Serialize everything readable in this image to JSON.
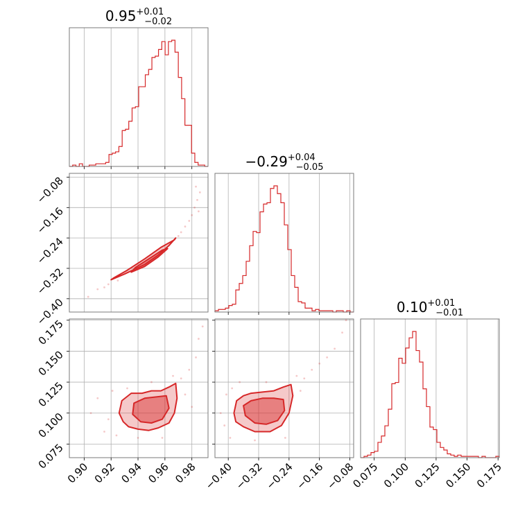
{
  "chart_data": {
    "type": "corner",
    "color": "#d62728",
    "parameters": [
      {
        "index": 0,
        "title": {
          "median": "0.95",
          "plus": "+0.01",
          "minus": "−0.02"
        },
        "range": [
          0.889,
          0.992
        ],
        "ticks": [
          0.9,
          0.92,
          0.94,
          0.96,
          0.98
        ],
        "tick_labels": [
          "0.90",
          "0.92",
          "0.94",
          "0.96",
          "0.98"
        ],
        "histogram": [
          0,
          1,
          0,
          2,
          0,
          0,
          1,
          1,
          2,
          2,
          2,
          3,
          9,
          10,
          11,
          15,
          27,
          28,
          34,
          44,
          45,
          60,
          60,
          69,
          73,
          82,
          83,
          88,
          94,
          84,
          94,
          95,
          86,
          67,
          51,
          31,
          31,
          10,
          3,
          1,
          1,
          0
        ]
      },
      {
        "index": 1,
        "title": {
          "median": "−0.29",
          "plus": "+0.04",
          "minus": "−0.05"
        },
        "range": [
          -0.435,
          -0.07
        ],
        "ticks": [
          -0.4,
          -0.32,
          -0.24,
          -0.16,
          -0.08
        ],
        "tick_labels": [
          "−0.40",
          "−0.32",
          "−0.24",
          "−0.16",
          "−0.08"
        ],
        "histogram": [
          1,
          2,
          2,
          3,
          5,
          6,
          17,
          22,
          28,
          39,
          51,
          62,
          61,
          77,
          83,
          84,
          95,
          97,
          91,
          84,
          67,
          48,
          28,
          19,
          8,
          7,
          3,
          3,
          1,
          2,
          1,
          1,
          1,
          1,
          0,
          1,
          1,
          0,
          1,
          0
        ]
      },
      {
        "index": 2,
        "title": {
          "median": "0.10",
          "plus": "+0.01",
          "minus": "−0.01"
        },
        "range": [
          0.064,
          0.176
        ],
        "ticks": [
          0.075,
          0.1,
          0.125,
          0.15,
          0.175
        ],
        "tick_labels": [
          "0.075",
          "0.100",
          "0.125",
          "0.150",
          "0.175"
        ],
        "histogram": [
          0,
          1,
          2,
          4,
          5,
          12,
          17,
          25,
          38,
          58,
          59,
          78,
          74,
          86,
          94,
          99,
          84,
          75,
          54,
          40,
          24,
          22,
          12,
          8,
          6,
          3,
          2,
          1,
          2,
          1,
          1,
          1,
          1,
          1,
          0,
          1,
          0,
          0,
          0,
          1
        ]
      }
    ],
    "pairs": [
      {
        "x_param": 0,
        "y_param": 1,
        "contour_levels": [
          {
            "fill_alpha": 0.25,
            "points": [
              [
                0.92,
                -0.35
              ],
              [
                0.93,
                -0.335
              ],
              [
                0.945,
                -0.31
              ],
              [
                0.955,
                -0.285
              ],
              [
                0.963,
                -0.26
              ],
              [
                0.968,
                -0.24
              ],
              [
                0.967,
                -0.245
              ],
              [
                0.957,
                -0.265
              ],
              [
                0.945,
                -0.295
              ],
              [
                0.932,
                -0.325
              ],
              [
                0.922,
                -0.345
              ]
            ]
          },
          {
            "fill_alpha": 0.45,
            "points": [
              [
                0.935,
                -0.33
              ],
              [
                0.945,
                -0.315
              ],
              [
                0.955,
                -0.29
              ],
              [
                0.962,
                -0.268
              ],
              [
                0.958,
                -0.272
              ],
              [
                0.948,
                -0.295
              ],
              [
                0.938,
                -0.318
              ]
            ]
          }
        ],
        "samples": [
          [
            0.903,
            -0.395
          ],
          [
            0.91,
            -0.375
          ],
          [
            0.915,
            -0.37
          ],
          [
            0.918,
            -0.362
          ],
          [
            0.975,
            -0.21
          ],
          [
            0.978,
            -0.195
          ],
          [
            0.98,
            -0.18
          ],
          [
            0.982,
            -0.16
          ],
          [
            0.984,
            -0.14
          ],
          [
            0.986,
            -0.12
          ],
          [
            0.983,
            -0.105
          ],
          [
            0.972,
            -0.225
          ],
          [
            0.925,
            -0.352
          ],
          [
            0.97,
            -0.235
          ],
          [
            0.985,
            -0.17
          ]
        ]
      },
      {
        "x_param": 0,
        "y_param": 2,
        "contour_levels": [
          {
            "fill_alpha": 0.25,
            "points": [
              [
                0.928,
                0.11
              ],
              [
                0.935,
                0.116
              ],
              [
                0.943,
                0.116
              ],
              [
                0.95,
                0.118
              ],
              [
                0.957,
                0.118
              ],
              [
                0.963,
                0.121
              ],
              [
                0.968,
                0.124
              ],
              [
                0.969,
                0.112
              ],
              [
                0.967,
                0.1
              ],
              [
                0.963,
                0.092
              ],
              [
                0.955,
                0.088
              ],
              [
                0.948,
                0.086
              ],
              [
                0.94,
                0.087
              ],
              [
                0.933,
                0.089
              ],
              [
                0.929,
                0.093
              ],
              [
                0.926,
                0.1
              ]
            ]
          },
          {
            "fill_alpha": 0.45,
            "points": [
              [
                0.937,
                0.108
              ],
              [
                0.945,
                0.112
              ],
              [
                0.953,
                0.113
              ],
              [
                0.961,
                0.114
              ],
              [
                0.963,
                0.104
              ],
              [
                0.958,
                0.095
              ],
              [
                0.95,
                0.092
              ],
              [
                0.942,
                0.093
              ],
              [
                0.936,
                0.099
              ]
            ]
          }
        ],
        "samples": [
          [
            0.905,
            0.1
          ],
          [
            0.91,
            0.112
          ],
          [
            0.915,
            0.085
          ],
          [
            0.918,
            0.095
          ],
          [
            0.921,
            0.118
          ],
          [
            0.924,
            0.082
          ],
          [
            0.972,
            0.128
          ],
          [
            0.975,
            0.115
          ],
          [
            0.978,
            0.135
          ],
          [
            0.98,
            0.105
          ],
          [
            0.983,
            0.145
          ],
          [
            0.985,
            0.16
          ],
          [
            0.988,
            0.17
          ],
          [
            0.95,
            0.125
          ],
          [
            0.958,
            0.08
          ],
          [
            0.966,
            0.13
          ],
          [
            0.94,
            0.08
          ],
          [
            0.932,
            0.12
          ]
        ]
      },
      {
        "x_param": 1,
        "y_param": 2,
        "contour_levels": [
          {
            "fill_alpha": 0.25,
            "points": [
              [
                -0.385,
                0.1
              ],
              [
                -0.378,
                0.11
              ],
              [
                -0.36,
                0.114
              ],
              [
                -0.34,
                0.116
              ],
              [
                -0.31,
                0.117
              ],
              [
                -0.28,
                0.118
              ],
              [
                -0.255,
                0.121
              ],
              [
                -0.235,
                0.123
              ],
              [
                -0.23,
                0.114
              ],
              [
                -0.24,
                0.1
              ],
              [
                -0.26,
                0.09
              ],
              [
                -0.29,
                0.085
              ],
              [
                -0.33,
                0.085
              ],
              [
                -0.36,
                0.089
              ],
              [
                -0.38,
                0.093
              ]
            ]
          },
          {
            "fill_alpha": 0.45,
            "points": [
              [
                -0.36,
                0.106
              ],
              [
                -0.34,
                0.11
              ],
              [
                -0.31,
                0.112
              ],
              [
                -0.28,
                0.112
              ],
              [
                -0.255,
                0.111
              ],
              [
                -0.252,
                0.102
              ],
              [
                -0.27,
                0.094
              ],
              [
                -0.3,
                0.091
              ],
              [
                -0.33,
                0.092
              ],
              [
                -0.355,
                0.098
              ]
            ]
          }
        ],
        "samples": [
          [
            -0.42,
            0.1
          ],
          [
            -0.41,
            0.09
          ],
          [
            -0.405,
            0.115
          ],
          [
            -0.395,
            0.08
          ],
          [
            -0.39,
            0.12
          ],
          [
            -0.22,
            0.13
          ],
          [
            -0.2,
            0.128
          ],
          [
            -0.18,
            0.135
          ],
          [
            -0.16,
            0.14
          ],
          [
            -0.14,
            0.145
          ],
          [
            -0.12,
            0.152
          ],
          [
            -0.1,
            0.165
          ],
          [
            -0.09,
            0.175
          ],
          [
            -0.21,
            0.118
          ],
          [
            -0.3,
            0.125
          ],
          [
            -0.33,
            0.078
          ],
          [
            -0.25,
            0.08
          ],
          [
            -0.37,
            0.125
          ]
        ]
      }
    ],
    "grid": true
  }
}
